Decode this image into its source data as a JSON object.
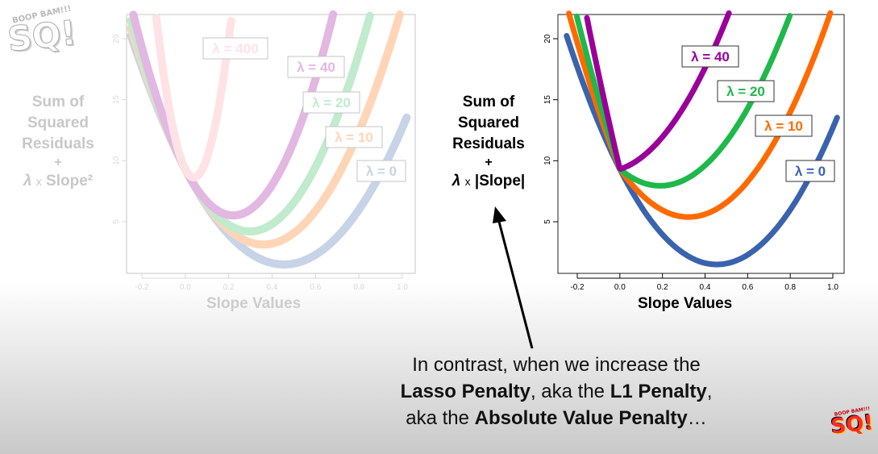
{
  "left_panel": {
    "ylabel": {
      "line1": "Sum of",
      "line2": "Squared",
      "line3": "Residuals",
      "plus": "+",
      "lambda": "λ",
      "times": "x",
      "term": "Slope²"
    },
    "xlabel": "Slope Values",
    "curve_labels": [
      "λ = 400",
      "λ = 40",
      "λ = 20",
      "λ = 10",
      "λ = 0"
    ]
  },
  "right_panel": {
    "ylabel": {
      "line1": "Sum of",
      "line2": "Squared",
      "line3": "Residuals",
      "plus": "+",
      "lambda": "λ",
      "times": "x",
      "term": "|Slope|"
    },
    "xlabel": "Slope Values",
    "curve_labels": [
      "λ = 40",
      "λ = 20",
      "λ = 10",
      "λ = 0"
    ]
  },
  "x_ticks": [
    "-0.2",
    "0.0",
    "0.2",
    "0.4",
    "0.6",
    "0.8",
    "1.0"
  ],
  "y_ticks": [
    "5",
    "10",
    "15",
    "20"
  ],
  "caption": {
    "line1": "In contrast, when we increase the",
    "bold1": "Lasso Penalty",
    "mid1": ", aka the ",
    "bold2": "L1 Penalty",
    "end1": ",",
    "prefix3": "aka the ",
    "bold3": "Absolute Value Penalty",
    "end3": "…"
  },
  "logo": {
    "top": "BOOP BAM!!!",
    "main": "SQ!"
  },
  "colors": {
    "lambda0": "#3a63ad",
    "lambda10": "#ff6a00",
    "lambda20": "#1fb84a",
    "lambda40": "#990099",
    "lambda400": "#ff9aa6"
  }
}
